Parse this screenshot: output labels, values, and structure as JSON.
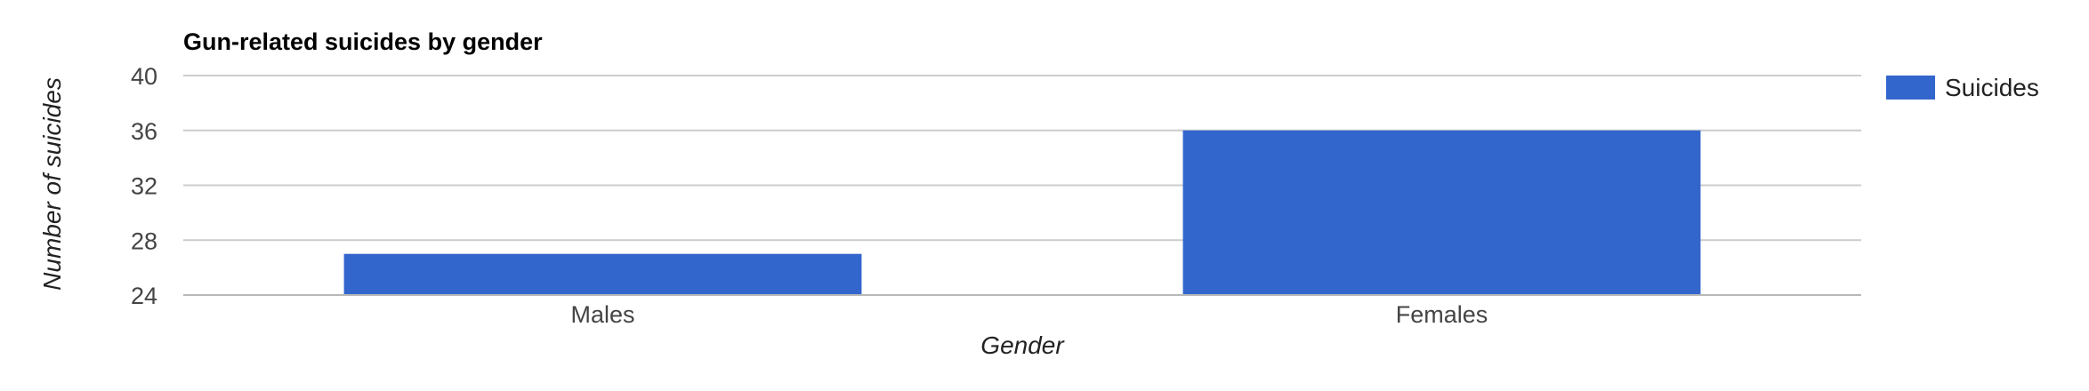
{
  "chart_data": {
    "type": "bar",
    "title": "Gun-related suicides by gender",
    "xlabel": "Gender",
    "ylabel": "Number of suicides",
    "categories": [
      "Males",
      "Females"
    ],
    "series": [
      {
        "name": "Suicides",
        "values": [
          27,
          36
        ],
        "color": "#3366cc"
      }
    ],
    "ylim": [
      24,
      40
    ],
    "yticks": [
      24,
      28,
      32,
      36,
      40
    ],
    "grid": true,
    "legend": "right"
  }
}
